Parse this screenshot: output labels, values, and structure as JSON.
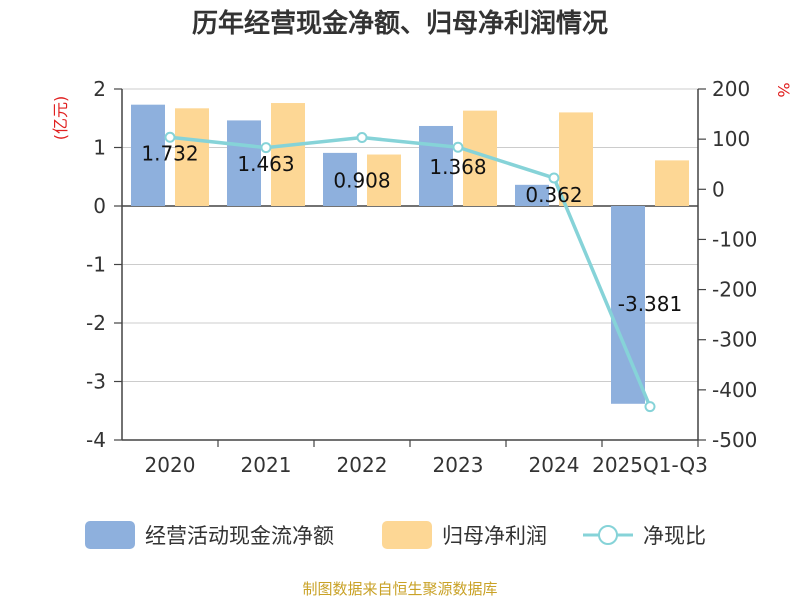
{
  "chart_data": {
    "type": "bar",
    "title": "历年经营现金净额、归母净利润情况",
    "categories": [
      "2020",
      "2021",
      "2022",
      "2023",
      "2024",
      "2025Q1-Q3"
    ],
    "left_unit": "(亿元)",
    "right_unit": "%",
    "ylim_left": [
      -4,
      2
    ],
    "yticks_left": [
      "2",
      "1",
      "0",
      "-1",
      "-2",
      "-3",
      "-4"
    ],
    "ylim_right": [
      -500,
      200
    ],
    "yticks_right": [
      "200",
      "100",
      "0",
      "-100",
      "-200",
      "-300",
      "-400",
      "-500"
    ],
    "grid": true,
    "legend_position": "bottom",
    "series": [
      {
        "name": "经营活动现金流净额",
        "kind": "bar",
        "color": "#8eb0dd",
        "values": [
          1.732,
          1.463,
          0.908,
          1.368,
          0.362,
          -3.381
        ],
        "labels": [
          "1.732",
          "1.463",
          "0.908",
          "1.368",
          "0.362",
          "-3.381"
        ]
      },
      {
        "name": "归母净利润",
        "kind": "bar",
        "color": "#fdd795",
        "values": [
          1.67,
          1.76,
          0.88,
          1.63,
          1.6,
          0.78
        ]
      },
      {
        "name": "净现比",
        "kind": "line",
        "axis": "right",
        "color": "#86d3d8",
        "values": [
          103.7,
          83.1,
          103.2,
          83.9,
          22.6,
          -433.5
        ]
      }
    ]
  },
  "source": "制图数据来自恒生聚源数据库"
}
